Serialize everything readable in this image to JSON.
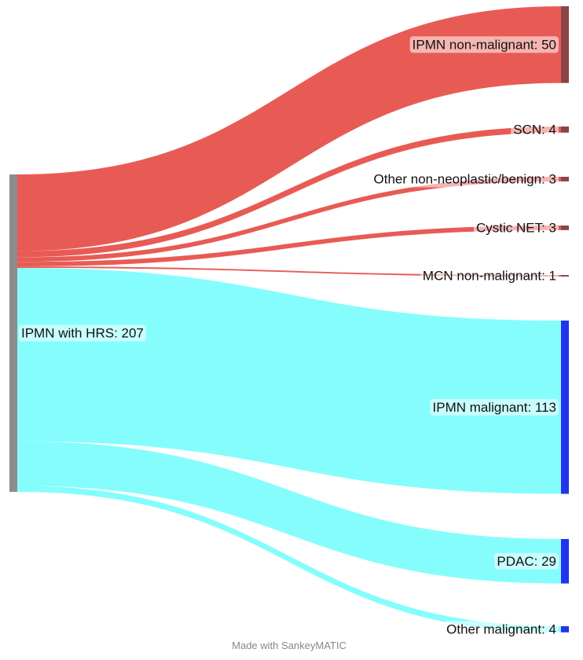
{
  "chart_data": {
    "type": "sankey",
    "source": {
      "name": "IPMN with HRS",
      "value": 207,
      "label": "IPMN with HRS: 207",
      "color": "#8c8c8c"
    },
    "groups": [
      {
        "name": "non-malignant",
        "flow_color": "#e85b55"
      },
      {
        "name": "malignant",
        "flow_color": "#85fdfd"
      }
    ],
    "targets": [
      {
        "name": "IPMN non-malignant",
        "value": 50,
        "label": "IPMN non-malignant: 50",
        "color": "#8b4444",
        "group": 0
      },
      {
        "name": "SCN",
        "value": 4,
        "label": "SCN: 4",
        "color": "#8b4444",
        "group": 0
      },
      {
        "name": "Other non-neoplastic/benign",
        "value": 3,
        "label": "Other non-neoplastic/benign: 3",
        "color": "#8b4444",
        "group": 0
      },
      {
        "name": "Cystic NET",
        "value": 3,
        "label": "Cystic NET: 3",
        "color": "#8b4444",
        "group": 0
      },
      {
        "name": "MCN non-malignant",
        "value": 1,
        "label": "MCN non-malignant: 1",
        "color": "#8b4444",
        "group": 0
      },
      {
        "name": "IPMN malignant",
        "value": 113,
        "label": "IPMN malignant: 113",
        "color": "#2233ee",
        "group": 1
      },
      {
        "name": "PDAC",
        "value": 29,
        "label": "PDAC: 29",
        "color": "#2233ee",
        "group": 1
      },
      {
        "name": "Other malignant",
        "value": 4,
        "label": "Other malignant: 4",
        "color": "#2233ee",
        "group": 1
      }
    ]
  },
  "credit": "Made with SankeyMATIC"
}
